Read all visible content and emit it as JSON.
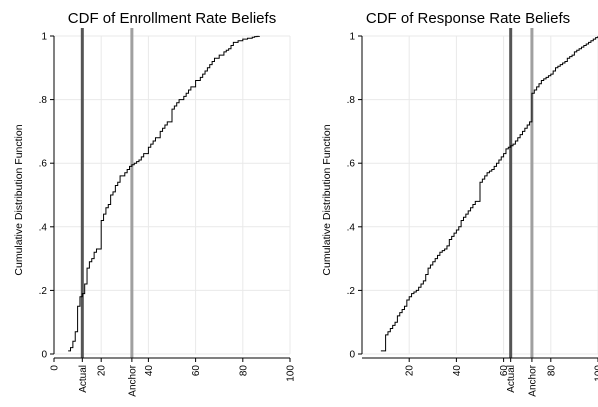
{
  "chart_data": [
    {
      "type": "line",
      "title": "CDF of Enrollment Rate Beliefs",
      "ylabel": "Cumulative Distribution Function",
      "xlabel": "",
      "xlim": [
        0,
        100
      ],
      "ylim": [
        0,
        1
      ],
      "x_ticks": [
        0,
        20,
        40,
        60,
        80,
        100
      ],
      "y_ticks": [
        "0",
        ".2",
        ".4",
        ".6",
        ".8",
        "1"
      ],
      "grid": true,
      "reference_lines": [
        {
          "label": "Actual",
          "x": 12,
          "color": "#555555"
        },
        {
          "label": "Anchor",
          "x": 33,
          "color": "#a0a0a0"
        }
      ],
      "series": [
        {
          "x": [
            6,
            7,
            8,
            9,
            10,
            11,
            12,
            13,
            14,
            15,
            16,
            17,
            18,
            20,
            21,
            22,
            23,
            24,
            25,
            26,
            27,
            28,
            30,
            31,
            32,
            33,
            34,
            35,
            36,
            37,
            38,
            40,
            41,
            42,
            43,
            45,
            46,
            47,
            48,
            50,
            51,
            52,
            53,
            55,
            56,
            57,
            58,
            60,
            62,
            63,
            64,
            65,
            66,
            67,
            68,
            70,
            72,
            73,
            74,
            75,
            76,
            78,
            80,
            82,
            84,
            85,
            86,
            87
          ],
          "y": [
            0.01,
            0.02,
            0.04,
            0.07,
            0.15,
            0.18,
            0.19,
            0.22,
            0.27,
            0.29,
            0.3,
            0.32,
            0.33,
            0.42,
            0.44,
            0.46,
            0.47,
            0.5,
            0.51,
            0.53,
            0.54,
            0.56,
            0.57,
            0.58,
            0.59,
            0.595,
            0.6,
            0.605,
            0.61,
            0.62,
            0.63,
            0.65,
            0.66,
            0.67,
            0.68,
            0.7,
            0.71,
            0.72,
            0.73,
            0.77,
            0.78,
            0.79,
            0.8,
            0.81,
            0.82,
            0.83,
            0.84,
            0.86,
            0.87,
            0.88,
            0.89,
            0.9,
            0.91,
            0.92,
            0.93,
            0.94,
            0.95,
            0.955,
            0.96,
            0.97,
            0.98,
            0.985,
            0.99,
            0.993,
            0.996,
            0.998,
            0.999,
            1.0
          ]
        }
      ]
    },
    {
      "type": "line",
      "title": "CDF of Response Rate Beliefs",
      "ylabel": "Cumulative Distribution Function",
      "xlabel": "",
      "xlim": [
        0,
        100
      ],
      "ylim": [
        0,
        1
      ],
      "x_ticks": [
        20,
        40,
        60,
        80,
        100
      ],
      "y_ticks": [
        "0",
        ".2",
        ".4",
        ".6",
        ".8",
        "1"
      ],
      "grid": true,
      "reference_lines": [
        {
          "label": "Actual",
          "x": 63,
          "color": "#555555"
        },
        {
          "label": "Anchor",
          "x": 72,
          "color": "#a0a0a0"
        }
      ],
      "series": [
        {
          "x": [
            8,
            10,
            11,
            12,
            13,
            14,
            15,
            16,
            17,
            18,
            19,
            20,
            21,
            22,
            23,
            24,
            25,
            26,
            27,
            28,
            29,
            30,
            31,
            32,
            33,
            34,
            35,
            36,
            37,
            38,
            39,
            40,
            41,
            42,
            43,
            44,
            45,
            46,
            47,
            48,
            50,
            51,
            52,
            53,
            54,
            55,
            56,
            57,
            58,
            59,
            60,
            61,
            62,
            63,
            64,
            65,
            66,
            67,
            68,
            69,
            70,
            71,
            72,
            73,
            74,
            75,
            76,
            77,
            78,
            79,
            80,
            81,
            82,
            83,
            84,
            85,
            86,
            87,
            88,
            89,
            90,
            91,
            92,
            93,
            94,
            95,
            96,
            97,
            98,
            99,
            100
          ],
          "y": [
            0.01,
            0.06,
            0.07,
            0.08,
            0.09,
            0.1,
            0.12,
            0.13,
            0.14,
            0.15,
            0.17,
            0.18,
            0.19,
            0.195,
            0.2,
            0.21,
            0.22,
            0.23,
            0.25,
            0.27,
            0.28,
            0.29,
            0.3,
            0.31,
            0.32,
            0.325,
            0.33,
            0.34,
            0.36,
            0.37,
            0.38,
            0.39,
            0.4,
            0.42,
            0.43,
            0.44,
            0.45,
            0.46,
            0.47,
            0.48,
            0.54,
            0.55,
            0.56,
            0.57,
            0.575,
            0.58,
            0.59,
            0.6,
            0.61,
            0.62,
            0.63,
            0.645,
            0.65,
            0.655,
            0.66,
            0.67,
            0.68,
            0.69,
            0.7,
            0.71,
            0.72,
            0.73,
            0.82,
            0.83,
            0.84,
            0.85,
            0.86,
            0.865,
            0.87,
            0.875,
            0.88,
            0.89,
            0.9,
            0.905,
            0.91,
            0.915,
            0.92,
            0.93,
            0.935,
            0.94,
            0.95,
            0.955,
            0.96,
            0.965,
            0.97,
            0.975,
            0.98,
            0.985,
            0.99,
            0.995,
            1.0
          ]
        }
      ]
    }
  ]
}
